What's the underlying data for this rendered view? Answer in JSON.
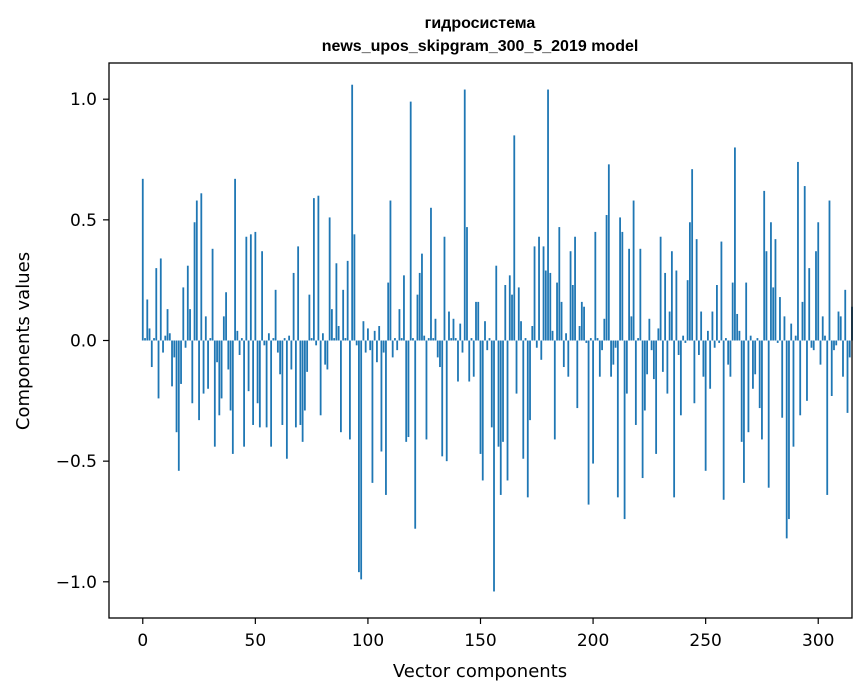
{
  "chart_data": {
    "type": "bar",
    "title_line1": "гидросистема",
    "title_line2": "news_upos_skipgram_300_5_2019 model",
    "xlabel": "Vector components",
    "ylabel": "Components values",
    "xlim": [
      -15,
      315
    ],
    "ylim": [
      -1.15,
      1.15
    ],
    "xticks": [
      0,
      50,
      100,
      150,
      200,
      250,
      300
    ],
    "xtick_labels": [
      "0",
      "50",
      "100",
      "150",
      "200",
      "250",
      "300"
    ],
    "yticks": [
      -1.0,
      -0.5,
      0.0,
      0.5,
      1.0
    ],
    "ytick_labels": [
      "−1.0",
      "−0.5",
      "0.0",
      "0.5",
      "1.0"
    ],
    "bar_color": "#1f77b4",
    "grid": false,
    "x_start": 0,
    "values": [
      0.67,
      0.01,
      0.17,
      0.05,
      -0.11,
      0.01,
      0.3,
      -0.24,
      0.34,
      -0.05,
      0.02,
      0.13,
      0.03,
      -0.19,
      -0.07,
      -0.38,
      -0.54,
      -0.18,
      0.22,
      -0.03,
      0.31,
      0.13,
      -0.26,
      0.49,
      0.58,
      -0.33,
      0.61,
      -0.22,
      0.1,
      -0.2,
      0.01,
      0.38,
      -0.44,
      -0.09,
      -0.31,
      -0.24,
      0.1,
      0.2,
      -0.12,
      -0.29,
      -0.47,
      0.67,
      0.04,
      -0.06,
      0.01,
      -0.44,
      0.43,
      -0.21,
      0.44,
      -0.35,
      0.45,
      -0.26,
      -0.36,
      0.37,
      -0.02,
      -0.36,
      0.03,
      -0.44,
      0.01,
      0.21,
      -0.05,
      -0.14,
      -0.35,
      0.01,
      -0.49,
      0.02,
      -0.12,
      0.28,
      -0.36,
      0.39,
      -0.35,
      -0.42,
      -0.29,
      -0.13,
      0.19,
      0.01,
      0.59,
      -0.02,
      0.6,
      -0.31,
      0.03,
      -0.1,
      -0.12,
      0.51,
      0.13,
      0.01,
      0.32,
      0.06,
      -0.38,
      0.21,
      0.01,
      0.33,
      -0.41,
      1.06,
      0.44,
      -0.02,
      -0.96,
      -0.99,
      0.08,
      -0.05,
      0.05,
      -0.04,
      -0.59,
      0.04,
      -0.09,
      0.06,
      -0.46,
      -0.05,
      -0.64,
      0.24,
      0.58,
      -0.07,
      0.01,
      -0.04,
      0.13,
      0.01,
      0.27,
      -0.42,
      -0.4,
      0.99,
      0.01,
      -0.78,
      0.19,
      0.28,
      0.36,
      0.02,
      -0.41,
      0.01,
      0.55,
      0.01,
      0.09,
      -0.07,
      -0.11,
      -0.48,
      0.43,
      -0.5,
      0.12,
      0.01,
      0.09,
      0.01,
      -0.17,
      0.07,
      -0.05,
      1.04,
      0.47,
      -0.17,
      0.01,
      -0.15,
      0.16,
      0.16,
      -0.47,
      -0.58,
      0.08,
      -0.04,
      0.01,
      -0.36,
      -1.04,
      0.31,
      -0.44,
      -0.64,
      -0.42,
      0.23,
      -0.58,
      0.27,
      0.19,
      0.85,
      -0.22,
      0.22,
      0.08,
      -0.49,
      0.01,
      -0.65,
      -0.33,
      0.06,
      0.39,
      -0.03,
      0.43,
      -0.08,
      0.39,
      0.29,
      1.04,
      0.28,
      0.04,
      -0.41,
      0.24,
      0.47,
      0.16,
      -0.11,
      0.03,
      -0.15,
      0.37,
      0.23,
      0.43,
      -0.28,
      0.06,
      0.16,
      0.14,
      -0.01,
      -0.68,
      0.01,
      -0.51,
      0.45,
      0.01,
      -0.15,
      -0.04,
      0.09,
      0.52,
      0.73,
      -0.15,
      -0.1,
      -0.03,
      -0.65,
      0.51,
      0.45,
      -0.74,
      -0.22,
      0.38,
      0.1,
      0.58,
      -0.35,
      0.01,
      0.38,
      -0.57,
      -0.29,
      -0.14,
      0.09,
      -0.04,
      -0.16,
      -0.47,
      0.05,
      0.43,
      -0.13,
      0.28,
      -0.22,
      0.12,
      0.37,
      -0.65,
      0.29,
      -0.06,
      -0.31,
      0.02,
      -0.01,
      0.25,
      0.49,
      0.71,
      -0.26,
      0.42,
      -0.06,
      0.12,
      -0.15,
      -0.54,
      0.04,
      -0.2,
      0.12,
      -0.03,
      0.23,
      -0.01,
      0.41,
      -0.66,
      0.01,
      -0.1,
      -0.15,
      0.24,
      0.8,
      0.11,
      0.04,
      -0.42,
      -0.59,
      0.24,
      -0.38,
      0.02,
      -0.2,
      -0.14,
      0.01,
      -0.28,
      -0.41,
      0.62,
      0.37,
      -0.61,
      0.49,
      0.22,
      0.42,
      -0.01,
      0.18,
      -0.32,
      0.1,
      -0.82,
      -0.74,
      0.07,
      -0.44,
      0.02,
      0.74,
      -0.31,
      0.16,
      0.64,
      -0.25,
      0.3,
      -0.03,
      -0.04,
      0.37,
      0.49,
      -0.1,
      0.1,
      0.02,
      -0.64,
      0.58,
      -0.23,
      -0.04,
      -0.02,
      0.12,
      0.1,
      -0.15,
      0.21,
      -0.3,
      -0.07,
      0.14
    ]
  }
}
